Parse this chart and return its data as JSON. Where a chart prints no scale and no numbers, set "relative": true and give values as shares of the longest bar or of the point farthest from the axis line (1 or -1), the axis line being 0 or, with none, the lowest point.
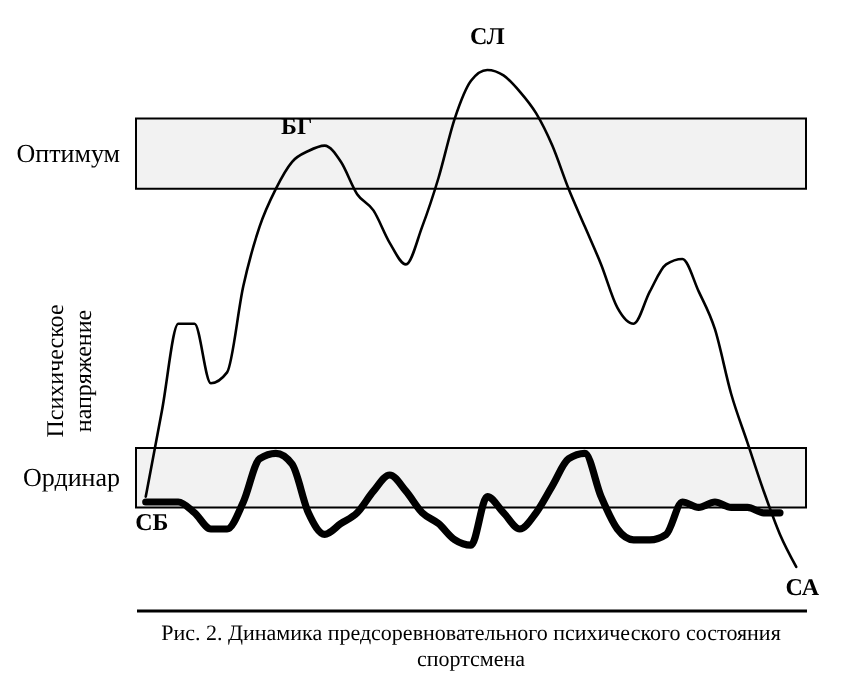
{
  "chart_data": {
    "type": "line",
    "relative": true,
    "title": "Рис. 2. Динамика предсоревновательного психического состояния спортсмена",
    "ylabel": "Психическое напряжение",
    "legend": false,
    "grid": false,
    "categories": [
      null,
      null,
      null,
      null,
      null,
      null,
      null,
      null,
      null,
      null,
      null,
      null,
      null,
      null,
      null,
      null,
      null,
      null,
      null,
      null,
      null,
      null,
      null,
      null,
      null,
      null,
      null,
      null,
      null,
      null,
      null,
      null,
      null,
      null,
      null,
      null,
      null,
      null,
      null,
      null,
      null
    ],
    "series": [
      {
        "color": "#000000",
        "values": [
          0.21,
          0.37,
          0.53,
          0.53,
          0.42,
          0.44,
          0.6,
          0.71,
          0.78,
          0.83,
          0.85,
          0.86,
          0.83,
          0.77,
          0.74,
          0.68,
          0.64,
          0.71,
          0.8,
          0.91,
          0.98,
          1,
          0.99,
          0.96,
          0.92,
          0.86,
          0.78,
          0.71,
          0.64,
          0.56,
          0.53,
          0.59,
          0.64,
          0.65,
          0.59,
          0.52,
          0.4,
          0.31,
          0.22,
          0.14,
          0.08
        ]
      },
      {
        "color": "#000000",
        "values": [
          0.2,
          0.2,
          0.2,
          0.18,
          0.15,
          0.15,
          0.2,
          0.28,
          0.29,
          0.27,
          0.18,
          0.14,
          0.16,
          0.18,
          0.22,
          0.25,
          0.22,
          0.18,
          0.16,
          0.13,
          0.12,
          0.21,
          0.18,
          0.15,
          0.18,
          0.23,
          0.28,
          0.29,
          0.21,
          0.15,
          0.13,
          0.13,
          0.14,
          0.2,
          0.19,
          0.2,
          0.19,
          0.19,
          0.18,
          0.18,
          null
        ]
      }
    ],
    "bands": [
      {
        "axis": "y",
        "from": 0.78,
        "to": 0.91,
        "label": "Оптимум"
      },
      {
        "axis": "y",
        "from": 0.19,
        "to": 0.3,
        "label": "Ординар"
      }
    ],
    "annotations": [
      {
        "text": "СЛ",
        "y": 1
      },
      {
        "text": "БГ",
        "y": 0.86
      },
      {
        "text": "СБ",
        "y": 0.2
      },
      {
        "text": "СА",
        "y": 0.08
      }
    ]
  }
}
